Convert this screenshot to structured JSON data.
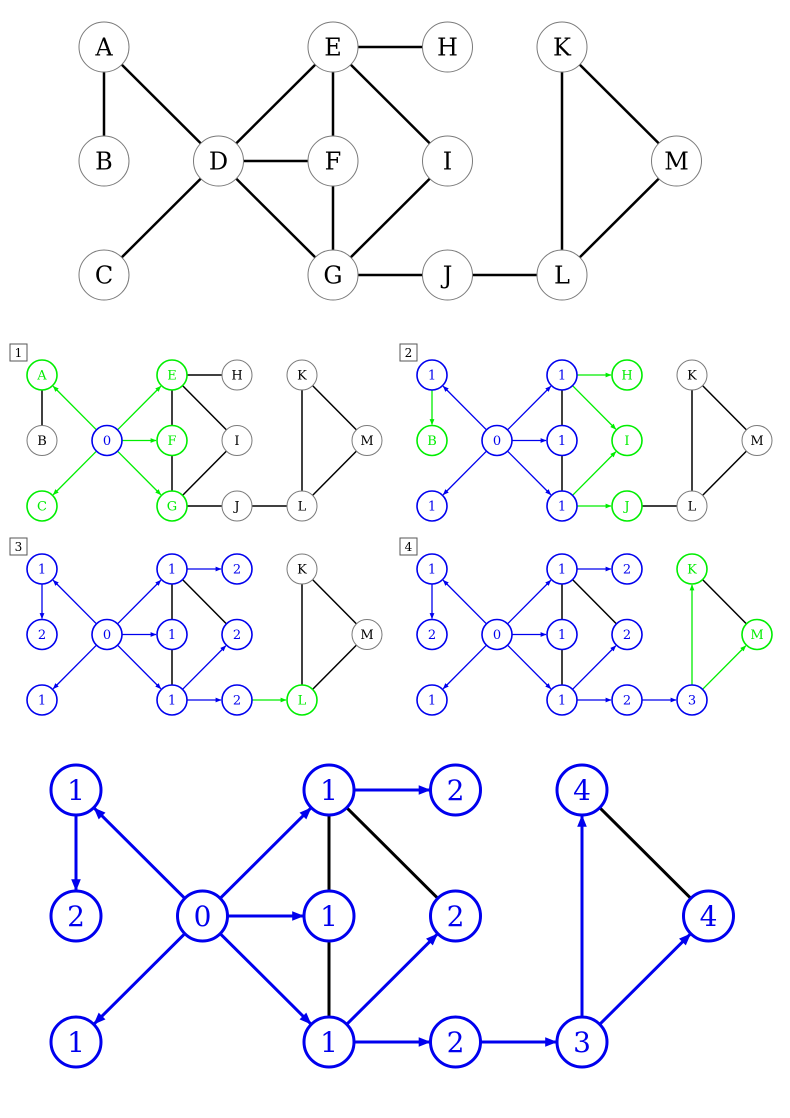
{
  "colors": {
    "default_stroke": "#7a7a7a",
    "default_text": "#000000",
    "edge": "#000000",
    "visited": "#0000ee",
    "frontier": "#00ee00"
  },
  "top_graph": {
    "nodes": [
      {
        "id": "A",
        "label": "A"
      },
      {
        "id": "B",
        "label": "B"
      },
      {
        "id": "C",
        "label": "C"
      },
      {
        "id": "D",
        "label": "D"
      },
      {
        "id": "E",
        "label": "E"
      },
      {
        "id": "F",
        "label": "F"
      },
      {
        "id": "G",
        "label": "G"
      },
      {
        "id": "H",
        "label": "H"
      },
      {
        "id": "I",
        "label": "I"
      },
      {
        "id": "J",
        "label": "J"
      },
      {
        "id": "K",
        "label": "K"
      },
      {
        "id": "L",
        "label": "L"
      },
      {
        "id": "M",
        "label": "M"
      }
    ],
    "edges": [
      [
        "A",
        "B"
      ],
      [
        "A",
        "D"
      ],
      [
        "C",
        "D"
      ],
      [
        "D",
        "E"
      ],
      [
        "D",
        "F"
      ],
      [
        "D",
        "G"
      ],
      [
        "E",
        "F"
      ],
      [
        "E",
        "H"
      ],
      [
        "E",
        "I"
      ],
      [
        "F",
        "G"
      ],
      [
        "G",
        "I"
      ],
      [
        "G",
        "J"
      ],
      [
        "J",
        "L"
      ],
      [
        "K",
        "L"
      ],
      [
        "K",
        "M"
      ],
      [
        "L",
        "M"
      ]
    ]
  },
  "steps": [
    {
      "step_label": "1",
      "nodes": {
        "A": {
          "label": "A",
          "state": "frontier"
        },
        "B": {
          "label": "B",
          "state": "default"
        },
        "C": {
          "label": "C",
          "state": "frontier"
        },
        "D": {
          "label": "0",
          "state": "visited"
        },
        "E": {
          "label": "E",
          "state": "frontier"
        },
        "F": {
          "label": "F",
          "state": "frontier"
        },
        "G": {
          "label": "G",
          "state": "frontier"
        },
        "H": {
          "label": "H",
          "state": "default"
        },
        "I": {
          "label": "I",
          "state": "default"
        },
        "J": {
          "label": "J",
          "state": "default"
        },
        "K": {
          "label": "K",
          "state": "default"
        },
        "L": {
          "label": "L",
          "state": "default"
        },
        "M": {
          "label": "M",
          "state": "default"
        }
      },
      "arrows": [
        {
          "from": "D",
          "to": "A",
          "state": "frontier"
        },
        {
          "from": "D",
          "to": "C",
          "state": "frontier"
        },
        {
          "from": "D",
          "to": "E",
          "state": "frontier"
        },
        {
          "from": "D",
          "to": "F",
          "state": "frontier"
        },
        {
          "from": "D",
          "to": "G",
          "state": "frontier"
        }
      ],
      "lines": [
        [
          "A",
          "B"
        ],
        [
          "E",
          "F"
        ],
        [
          "E",
          "H"
        ],
        [
          "E",
          "I"
        ],
        [
          "F",
          "G"
        ],
        [
          "G",
          "I"
        ],
        [
          "G",
          "J"
        ],
        [
          "J",
          "L"
        ],
        [
          "K",
          "L"
        ],
        [
          "K",
          "M"
        ],
        [
          "L",
          "M"
        ]
      ]
    },
    {
      "step_label": "2",
      "nodes": {
        "A": {
          "label": "1",
          "state": "visited"
        },
        "B": {
          "label": "B",
          "state": "frontier"
        },
        "C": {
          "label": "1",
          "state": "visited"
        },
        "D": {
          "label": "0",
          "state": "visited"
        },
        "E": {
          "label": "1",
          "state": "visited"
        },
        "F": {
          "label": "1",
          "state": "visited"
        },
        "G": {
          "label": "1",
          "state": "visited"
        },
        "H": {
          "label": "H",
          "state": "frontier"
        },
        "I": {
          "label": "I",
          "state": "frontier"
        },
        "J": {
          "label": "J",
          "state": "frontier"
        },
        "K": {
          "label": "K",
          "state": "default"
        },
        "L": {
          "label": "L",
          "state": "default"
        },
        "M": {
          "label": "M",
          "state": "default"
        }
      },
      "arrows": [
        {
          "from": "D",
          "to": "A",
          "state": "visited"
        },
        {
          "from": "D",
          "to": "C",
          "state": "visited"
        },
        {
          "from": "D",
          "to": "E",
          "state": "visited"
        },
        {
          "from": "D",
          "to": "F",
          "state": "visited"
        },
        {
          "from": "D",
          "to": "G",
          "state": "visited"
        },
        {
          "from": "A",
          "to": "B",
          "state": "frontier"
        },
        {
          "from": "E",
          "to": "H",
          "state": "frontier"
        },
        {
          "from": "E",
          "to": "I",
          "state": "frontier"
        },
        {
          "from": "G",
          "to": "I",
          "state": "frontier"
        },
        {
          "from": "G",
          "to": "J",
          "state": "frontier"
        }
      ],
      "lines": [
        [
          "E",
          "F"
        ],
        [
          "F",
          "G"
        ],
        [
          "J",
          "L"
        ],
        [
          "K",
          "L"
        ],
        [
          "K",
          "M"
        ],
        [
          "L",
          "M"
        ]
      ]
    },
    {
      "step_label": "3",
      "nodes": {
        "A": {
          "label": "1",
          "state": "visited"
        },
        "B": {
          "label": "2",
          "state": "visited"
        },
        "C": {
          "label": "1",
          "state": "visited"
        },
        "D": {
          "label": "0",
          "state": "visited"
        },
        "E": {
          "label": "1",
          "state": "visited"
        },
        "F": {
          "label": "1",
          "state": "visited"
        },
        "G": {
          "label": "1",
          "state": "visited"
        },
        "H": {
          "label": "2",
          "state": "visited"
        },
        "I": {
          "label": "2",
          "state": "visited"
        },
        "J": {
          "label": "2",
          "state": "visited"
        },
        "K": {
          "label": "K",
          "state": "default"
        },
        "L": {
          "label": "L",
          "state": "frontier"
        },
        "M": {
          "label": "M",
          "state": "default"
        }
      },
      "arrows": [
        {
          "from": "D",
          "to": "A",
          "state": "visited"
        },
        {
          "from": "D",
          "to": "C",
          "state": "visited"
        },
        {
          "from": "D",
          "to": "E",
          "state": "visited"
        },
        {
          "from": "D",
          "to": "F",
          "state": "visited"
        },
        {
          "from": "D",
          "to": "G",
          "state": "visited"
        },
        {
          "from": "A",
          "to": "B",
          "state": "visited"
        },
        {
          "from": "E",
          "to": "H",
          "state": "visited"
        },
        {
          "from": "G",
          "to": "I",
          "state": "visited"
        },
        {
          "from": "G",
          "to": "J",
          "state": "visited"
        },
        {
          "from": "J",
          "to": "L",
          "state": "frontier"
        }
      ],
      "lines": [
        [
          "E",
          "F"
        ],
        [
          "F",
          "G"
        ],
        [
          "E",
          "I"
        ],
        [
          "K",
          "L"
        ],
        [
          "K",
          "M"
        ],
        [
          "L",
          "M"
        ]
      ]
    },
    {
      "step_label": "4",
      "nodes": {
        "A": {
          "label": "1",
          "state": "visited"
        },
        "B": {
          "label": "2",
          "state": "visited"
        },
        "C": {
          "label": "1",
          "state": "visited"
        },
        "D": {
          "label": "0",
          "state": "visited"
        },
        "E": {
          "label": "1",
          "state": "visited"
        },
        "F": {
          "label": "1",
          "state": "visited"
        },
        "G": {
          "label": "1",
          "state": "visited"
        },
        "H": {
          "label": "2",
          "state": "visited"
        },
        "I": {
          "label": "2",
          "state": "visited"
        },
        "J": {
          "label": "2",
          "state": "visited"
        },
        "K": {
          "label": "K",
          "state": "frontier"
        },
        "L": {
          "label": "3",
          "state": "visited"
        },
        "M": {
          "label": "M",
          "state": "frontier"
        }
      },
      "arrows": [
        {
          "from": "D",
          "to": "A",
          "state": "visited"
        },
        {
          "from": "D",
          "to": "C",
          "state": "visited"
        },
        {
          "from": "D",
          "to": "E",
          "state": "visited"
        },
        {
          "from": "D",
          "to": "F",
          "state": "visited"
        },
        {
          "from": "D",
          "to": "G",
          "state": "visited"
        },
        {
          "from": "A",
          "to": "B",
          "state": "visited"
        },
        {
          "from": "E",
          "to": "H",
          "state": "visited"
        },
        {
          "from": "G",
          "to": "I",
          "state": "visited"
        },
        {
          "from": "G",
          "to": "J",
          "state": "visited"
        },
        {
          "from": "J",
          "to": "L",
          "state": "visited"
        },
        {
          "from": "L",
          "to": "K",
          "state": "frontier"
        },
        {
          "from": "L",
          "to": "M",
          "state": "frontier"
        }
      ],
      "lines": [
        [
          "E",
          "F"
        ],
        [
          "F",
          "G"
        ],
        [
          "E",
          "I"
        ],
        [
          "K",
          "M"
        ]
      ]
    }
  ],
  "final_graph": {
    "nodes": {
      "A": {
        "label": "1",
        "state": "visited"
      },
      "B": {
        "label": "2",
        "state": "visited"
      },
      "C": {
        "label": "1",
        "state": "visited"
      },
      "D": {
        "label": "0",
        "state": "visited"
      },
      "E": {
        "label": "1",
        "state": "visited"
      },
      "F": {
        "label": "1",
        "state": "visited"
      },
      "G": {
        "label": "1",
        "state": "visited"
      },
      "H": {
        "label": "2",
        "state": "visited"
      },
      "I": {
        "label": "2",
        "state": "visited"
      },
      "J": {
        "label": "2",
        "state": "visited"
      },
      "K": {
        "label": "4",
        "state": "visited"
      },
      "L": {
        "label": "3",
        "state": "visited"
      },
      "M": {
        "label": "4",
        "state": "visited"
      }
    },
    "arrows": [
      {
        "from": "D",
        "to": "A",
        "state": "visited"
      },
      {
        "from": "D",
        "to": "C",
        "state": "visited"
      },
      {
        "from": "D",
        "to": "E",
        "state": "visited"
      },
      {
        "from": "D",
        "to": "F",
        "state": "visited"
      },
      {
        "from": "D",
        "to": "G",
        "state": "visited"
      },
      {
        "from": "A",
        "to": "B",
        "state": "visited"
      },
      {
        "from": "E",
        "to": "H",
        "state": "visited"
      },
      {
        "from": "G",
        "to": "I",
        "state": "visited"
      },
      {
        "from": "G",
        "to": "J",
        "state": "visited"
      },
      {
        "from": "J",
        "to": "L",
        "state": "visited"
      },
      {
        "from": "L",
        "to": "K",
        "state": "visited"
      },
      {
        "from": "L",
        "to": "M",
        "state": "visited"
      }
    ],
    "lines": [
      [
        "E",
        "F"
      ],
      [
        "F",
        "G"
      ],
      [
        "E",
        "I"
      ],
      [
        "K",
        "M"
      ]
    ]
  }
}
